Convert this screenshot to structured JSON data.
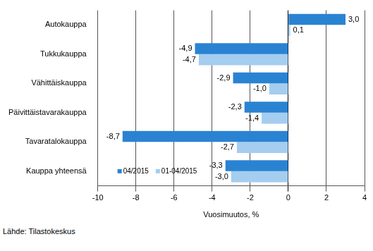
{
  "chart_data": {
    "type": "bar",
    "orientation": "horizontal",
    "categories": [
      "Autokauppa",
      "Tukkukauppa",
      "Vähittäiskauppa",
      "Päivittäistavarakauppa",
      "Tavaratalokauppa",
      "Kauppa yhteensä"
    ],
    "series": [
      {
        "name": "04/2015",
        "color": "#2a83d2",
        "values": [
          3.0,
          -4.9,
          -2.9,
          -2.3,
          -8.7,
          -3.3
        ],
        "value_labels": [
          "3,0",
          "-4,9",
          "-2,9",
          "-2,3",
          "-8,7",
          "-3,3"
        ]
      },
      {
        "name": "01-04/2015",
        "color": "#a4cdf0",
        "values": [
          0.1,
          -4.7,
          -1.0,
          -1.4,
          -2.7,
          -3.0
        ],
        "value_labels": [
          "0,1",
          "-4,7",
          "-1,0",
          "-1,4",
          "-2,7",
          "-3,0"
        ]
      }
    ],
    "x_label": "Vuosimuutos, %",
    "xlim": [
      -10,
      4
    ],
    "xticks": [
      -10,
      -8,
      -6,
      -4,
      -2,
      0,
      2,
      4
    ],
    "grid": true,
    "legend": "lower left",
    "data_labels": true,
    "source": "Lähde: Tilastokeskus"
  }
}
